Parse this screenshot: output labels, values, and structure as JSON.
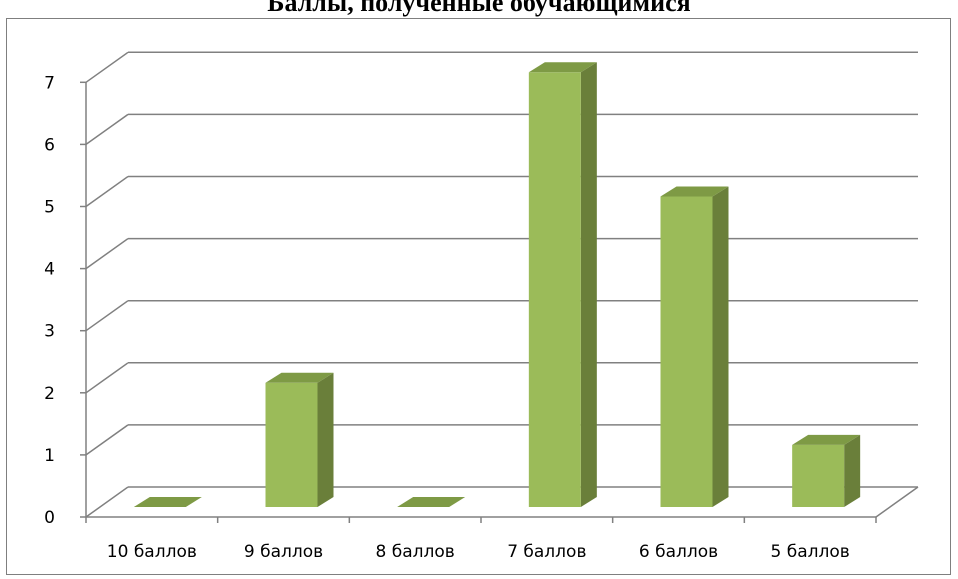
{
  "chart_data": {
    "type": "bar",
    "title": "Баллы, полученные обучающимися",
    "categories": [
      "10 баллов",
      "9 баллов",
      "8 баллов",
      "7 баллов",
      "6 баллов",
      "5 баллов"
    ],
    "values": [
      0,
      2,
      0,
      7,
      5,
      1
    ],
    "yticks": [
      "0",
      "1",
      "2",
      "3",
      "4",
      "5",
      "6",
      "7"
    ],
    "ylim": [
      0,
      7
    ],
    "xlabel": "",
    "ylabel": "",
    "grid": true,
    "legend": "none",
    "bar_color": "#9bbb59",
    "bar_side_color": "#6a7f3a",
    "bar_top_color": "#7e9a45",
    "grid_color": "#808080"
  }
}
